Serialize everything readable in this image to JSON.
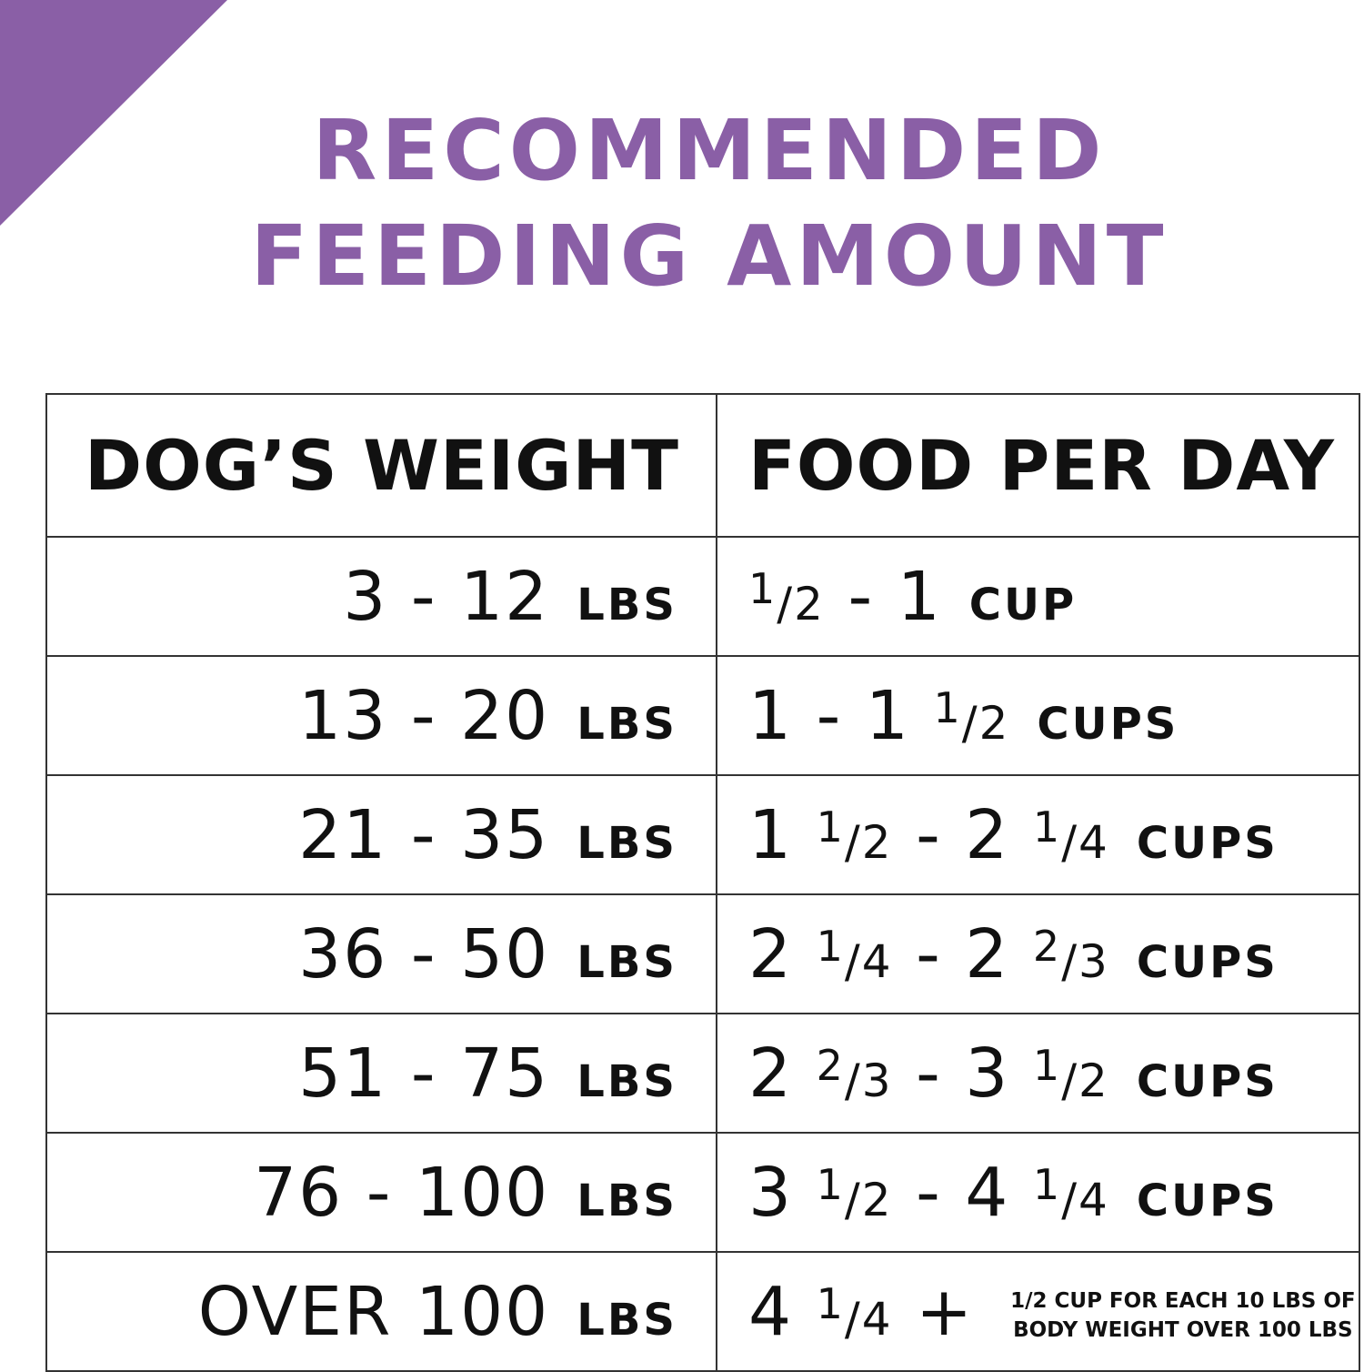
{
  "header": {
    "title_lines": [
      "RECOMMENDED",
      "FEEDING AMOUNT"
    ]
  },
  "table": {
    "headers": [
      "DOG’S WEIGHT",
      "FOOD PER DAY"
    ],
    "rows": [
      {
        "weight": "3 - 12",
        "weight_unit": "LBS",
        "food": "1/2 - 1",
        "food_unit": "CUP"
      },
      {
        "weight": "13 - 20",
        "weight_unit": "LBS",
        "food": "1 - 1 1/2",
        "food_unit": "CUPS"
      },
      {
        "weight": "21 - 35",
        "weight_unit": "LBS",
        "food": "1 1/2 - 2 1/4",
        "food_unit": "CUPS"
      },
      {
        "weight": "36 - 50",
        "weight_unit": "LBS",
        "food": "2 1/4 - 2 2/3",
        "food_unit": "CUPS"
      },
      {
        "weight": "51 - 75",
        "weight_unit": "LBS",
        "food": "2 2/3 - 3 1/2",
        "food_unit": "CUPS"
      },
      {
        "weight": "76 - 100",
        "weight_unit": "LBS",
        "food": "3 1/2 - 4 1/4",
        "food_unit": "CUPS"
      },
      {
        "weight": "OVER 100",
        "weight_unit": "LBS",
        "food": "4 1/4 +",
        "food_note": [
          "1/2 CUP FOR EACH 10 LBS OF",
          "BODY WEIGHT OVER 100 LBS"
        ]
      }
    ]
  }
}
